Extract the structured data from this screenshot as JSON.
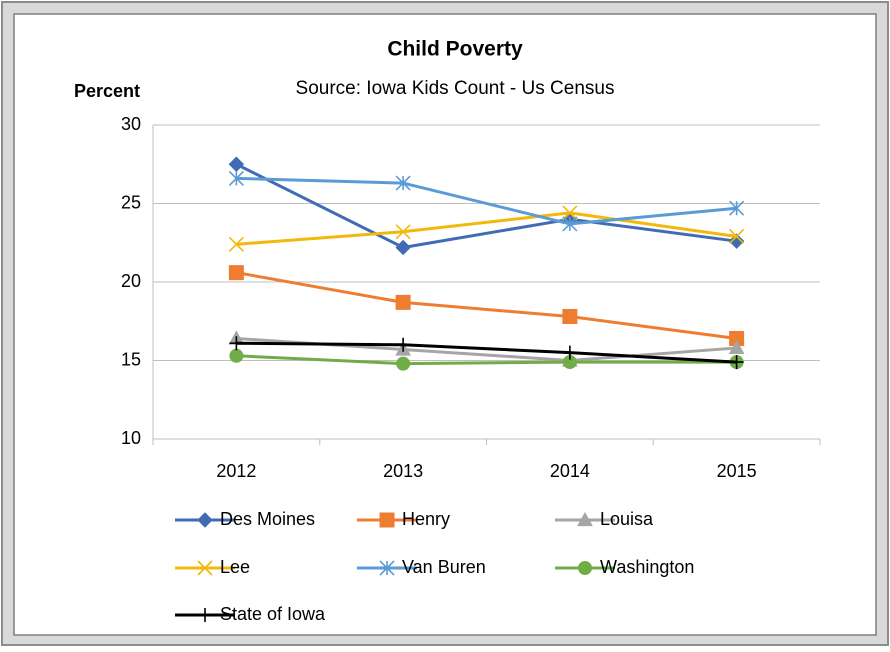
{
  "chart_data": {
    "type": "line",
    "title": "Child Poverty",
    "subtitle": "Source: Iowa Kids Count - Us Census",
    "y_label": "Percent",
    "categories": [
      "2012",
      "2013",
      "2014",
      "2015"
    ],
    "ylim": [
      10,
      30
    ],
    "yticks": [
      10,
      15,
      20,
      25,
      30
    ],
    "grid": true,
    "legend": "bottom",
    "series": [
      {
        "name": "Des Moines",
        "color": "#3f6cb5",
        "marker": "diamond",
        "values": [
          27.5,
          22.2,
          24.0,
          22.6
        ]
      },
      {
        "name": "Henry",
        "color": "#ed7d31",
        "marker": "square",
        "values": [
          20.6,
          18.7,
          17.8,
          16.4
        ]
      },
      {
        "name": "Louisa",
        "color": "#a5a5a5",
        "marker": "triangle",
        "values": [
          16.4,
          15.7,
          15.0,
          15.8
        ]
      },
      {
        "name": "Lee",
        "color": "#f2b90c",
        "marker": "x",
        "values": [
          22.4,
          23.2,
          24.4,
          22.9
        ]
      },
      {
        "name": "Van Buren",
        "color": "#5b9bd5",
        "marker": "asterisk",
        "values": [
          26.6,
          26.3,
          23.7,
          24.7
        ]
      },
      {
        "name": "Washington",
        "color": "#70ad47",
        "marker": "circle",
        "values": [
          15.3,
          14.8,
          14.9,
          14.9
        ]
      },
      {
        "name": "State of Iowa",
        "color": "#000000",
        "marker": "plus",
        "values": [
          16.1,
          16.0,
          15.5,
          14.9
        ]
      }
    ]
  }
}
